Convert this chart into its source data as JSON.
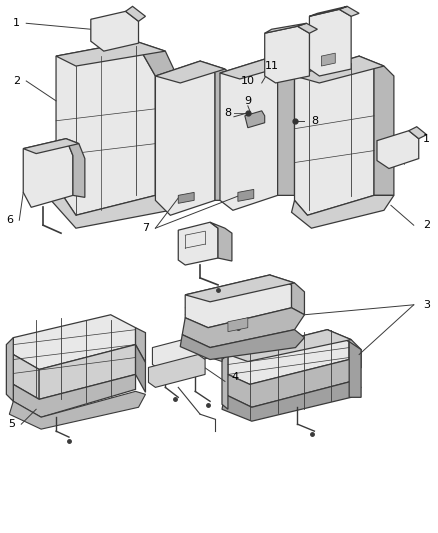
{
  "background_color": "#ffffff",
  "line_color": "#3a3a3a",
  "label_color": "#000000",
  "fig_width": 4.38,
  "fig_height": 5.33,
  "dpi": 100,
  "face_light": "#e8e8e8",
  "face_mid": "#d0d0d0",
  "face_dark": "#b8b8b8",
  "face_darker": "#a0a0a0"
}
